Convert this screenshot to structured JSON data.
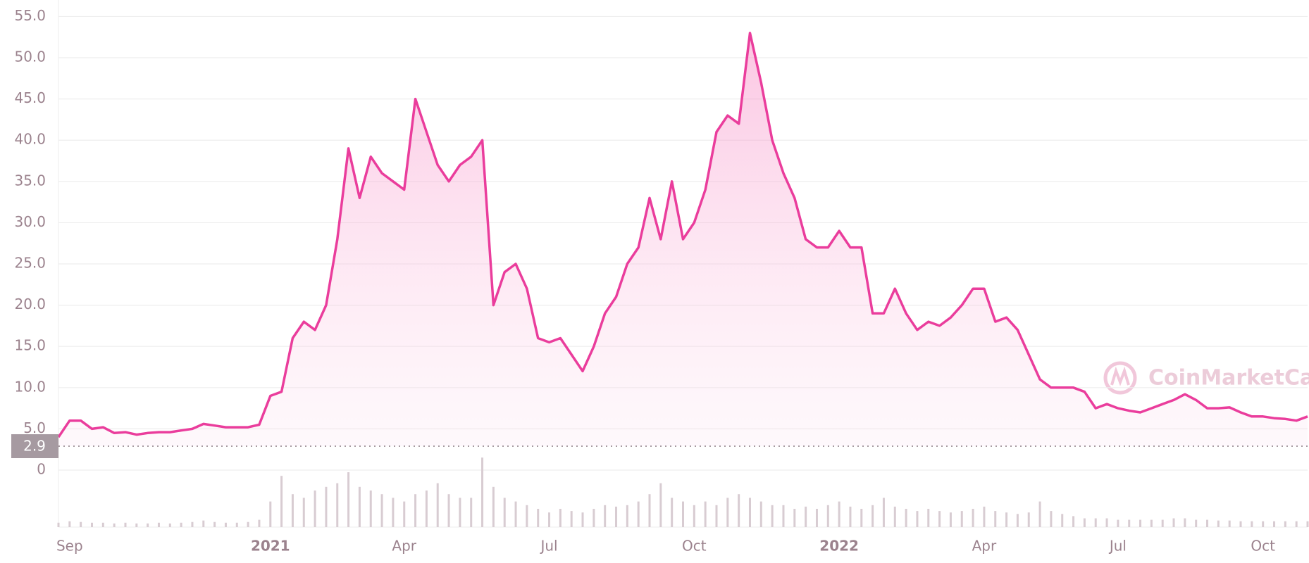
{
  "chart_data": {
    "type": "line",
    "categories": [
      null,
      "Sep",
      null,
      null,
      null,
      null,
      null,
      null,
      null,
      null,
      null,
      null,
      null,
      null,
      null,
      null,
      null,
      null,
      null,
      "2021",
      null,
      null,
      null,
      null,
      null,
      null,
      null,
      null,
      null,
      null,
      null,
      "Apr",
      null,
      null,
      null,
      null,
      null,
      null,
      null,
      null,
      null,
      null,
      null,
      null,
      "Jul",
      null,
      null,
      null,
      null,
      null,
      null,
      null,
      null,
      null,
      null,
      null,
      null,
      "Oct",
      null,
      null,
      null,
      null,
      null,
      null,
      null,
      null,
      null,
      null,
      null,
      null,
      "2022",
      null,
      null,
      null,
      null,
      null,
      null,
      null,
      null,
      null,
      null,
      null,
      null,
      "Apr",
      null,
      null,
      null,
      null,
      null,
      null,
      null,
      null,
      null,
      null,
      null,
      "Jul",
      null,
      null,
      null,
      null,
      null,
      null,
      null,
      null,
      null,
      null,
      null,
      null,
      "Oct",
      null,
      null,
      null,
      null
    ],
    "series": [
      {
        "color": "#ea3d9c",
        "values": [
          4,
          6,
          6,
          5,
          5.2,
          4.5,
          4.6,
          4.3,
          4.5,
          4.6,
          4.6,
          4.8,
          5,
          5.6,
          5.4,
          5.2,
          5.2,
          5.2,
          5.5,
          9,
          9.5,
          16,
          18,
          17,
          20,
          28,
          39,
          33,
          38,
          36,
          35,
          34,
          45,
          41,
          37,
          35,
          37,
          38,
          40,
          20,
          24,
          25,
          22,
          16,
          15.5,
          16,
          14,
          12,
          15,
          19,
          21,
          25,
          27,
          33,
          28,
          35,
          28,
          30,
          34,
          41,
          43,
          42,
          53,
          47,
          40,
          36,
          33,
          28,
          27,
          27,
          29,
          27,
          27,
          19,
          19,
          22,
          19,
          17,
          18,
          17.5,
          18.5,
          20,
          22,
          22,
          18,
          18.5,
          17,
          14,
          11,
          10,
          10,
          10,
          9.5,
          7.5,
          8,
          7.5,
          7.2,
          7,
          7.5,
          8,
          8.5,
          9.2,
          8.5,
          7.5,
          7.5,
          7.6,
          7,
          6.5,
          6.5,
          6.3,
          6.2,
          6,
          6.5
        ]
      },
      {
        "color": "#d8ccd2",
        "axis": "y2",
        "values": [
          6,
          8,
          7,
          6,
          6,
          5,
          6,
          5,
          5,
          6,
          5,
          6,
          7,
          9,
          7,
          6,
          6,
          7,
          10,
          35,
          70,
          45,
          40,
          50,
          55,
          60,
          75,
          55,
          50,
          45,
          40,
          35,
          45,
          50,
          60,
          45,
          40,
          40,
          95,
          55,
          40,
          35,
          30,
          25,
          20,
          25,
          22,
          20,
          25,
          30,
          28,
          30,
          35,
          45,
          60,
          40,
          35,
          30,
          35,
          30,
          40,
          45,
          40,
          35,
          30,
          30,
          25,
          28,
          25,
          30,
          35,
          28,
          25,
          30,
          40,
          28,
          25,
          22,
          25,
          22,
          20,
          22,
          25,
          28,
          22,
          20,
          18,
          20,
          35,
          22,
          18,
          15,
          12,
          12,
          12,
          10,
          10,
          10,
          10,
          10,
          12,
          12,
          10,
          10,
          9,
          9,
          8,
          8,
          8,
          8,
          8,
          8,
          8
        ]
      }
    ],
    "ylim": [
      0,
      57
    ],
    "yticks": [
      0,
      {
        "value": 5,
        "label": "5.0"
      },
      {
        "value": 10,
        "label": "10.0"
      },
      {
        "value": 15,
        "label": "15.0"
      },
      {
        "value": 20,
        "label": "20.0"
      },
      {
        "value": 25,
        "label": "25.0"
      },
      {
        "value": 30,
        "label": "30.0"
      },
      {
        "value": 35,
        "label": "35.0"
      },
      {
        "value": 40,
        "label": "40.0"
      },
      {
        "value": 45,
        "label": "45.0"
      },
      {
        "value": 50,
        "label": "50.0"
      },
      {
        "value": 55,
        "label": "55.0"
      }
    ],
    "y2lim": [
      0,
      100
    ],
    "grid": true,
    "reference_line": 2.9,
    "watermark": "CoinMarketCap"
  }
}
